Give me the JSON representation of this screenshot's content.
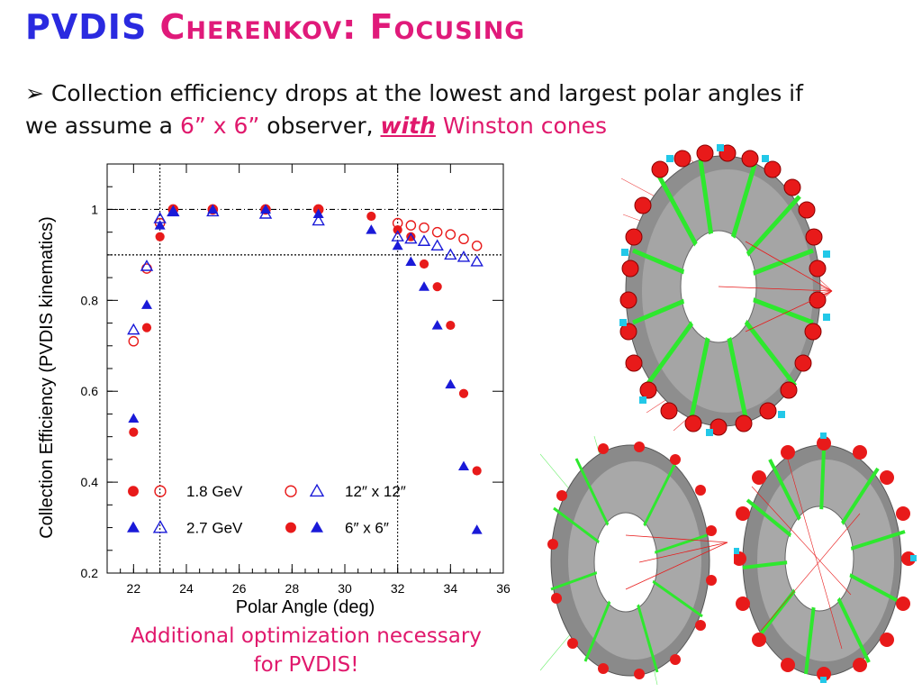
{
  "title": {
    "part1": "PVDIS",
    "part2": "Cherenkov: Focusing"
  },
  "bullet": {
    "marker": "➢",
    "text1": "Collection efficiency drops at the lowest and largest polar angles if we assume a ",
    "size": "6” x 6”",
    "text2": " observer, ",
    "with": "with",
    "text3": " Winston cones"
  },
  "caption": {
    "line1": "Additional optimization necessary",
    "line2": "for PVDIS!"
  },
  "colors": {
    "title_blue": "#2a2ae0",
    "accent_pink": "#e0186c",
    "red": "#e81a1a",
    "blue": "#1a1ad8",
    "cone_green": "#2ee82e",
    "ring_gray": "#8c8c8c"
  },
  "chart_data": {
    "type": "scatter",
    "xlabel": "Polar Angle (deg)",
    "ylabel": "Collection Efficiency (PVDIS kinematics)",
    "xlim": [
      21,
      36
    ],
    "ylim": [
      0.2,
      1.1
    ],
    "xticks": [
      22,
      24,
      26,
      28,
      30,
      32,
      34,
      36
    ],
    "yticks": [
      0.2,
      0.4,
      0.6,
      0.8,
      1
    ],
    "ytick_labels": [
      "0.2",
      "0.4",
      "0.6",
      "0.8",
      "1"
    ],
    "reference_lines": {
      "horizontal": [
        1.0,
        0.9
      ],
      "vertical": [
        23,
        32
      ]
    },
    "series": [
      {
        "name": "1.8 GeV 12″ x 12″",
        "marker": "open-circle",
        "color": "#e81a1a",
        "x": [
          22,
          22.5,
          23,
          23.5,
          25,
          27,
          29,
          32,
          32.5,
          33,
          33.5,
          34,
          34.5,
          35
        ],
        "y": [
          0.71,
          0.87,
          0.97,
          1.0,
          1.0,
          1.0,
          1.0,
          0.97,
          0.965,
          0.96,
          0.95,
          0.945,
          0.935,
          0.92
        ]
      },
      {
        "name": "1.8 GeV 6″ x 6″",
        "marker": "filled-circle",
        "color": "#e81a1a",
        "x": [
          22,
          22.5,
          23,
          23.5,
          25,
          27,
          29,
          31,
          32,
          32.5,
          33,
          33.5,
          34,
          34.5,
          35
        ],
        "y": [
          0.51,
          0.74,
          0.94,
          1.0,
          1.0,
          1.0,
          1.0,
          0.985,
          0.955,
          0.94,
          0.88,
          0.83,
          0.745,
          0.595,
          0.425
        ]
      },
      {
        "name": "2.7 GeV 12″ x 12″",
        "marker": "open-triangle",
        "color": "#1a1ad8",
        "x": [
          22,
          22.5,
          23,
          23.5,
          25,
          27,
          29,
          32,
          32.5,
          33,
          33.5,
          34,
          34.5,
          35
        ],
        "y": [
          0.735,
          0.875,
          0.98,
          0.995,
          0.995,
          0.99,
          0.975,
          0.94,
          0.935,
          0.93,
          0.92,
          0.9,
          0.895,
          0.885
        ]
      },
      {
        "name": "2.7 GeV 6″ x 6″",
        "marker": "filled-triangle",
        "color": "#1a1ad8",
        "x": [
          22,
          22.5,
          23,
          23.5,
          25,
          27,
          29,
          31,
          32,
          32.5,
          33,
          33.5,
          34,
          34.5,
          35
        ],
        "y": [
          0.54,
          0.79,
          0.965,
          0.995,
          1.0,
          1.0,
          0.99,
          0.955,
          0.92,
          0.885,
          0.83,
          0.745,
          0.615,
          0.435,
          0.295
        ]
      }
    ],
    "legend": {
      "rows": [
        {
          "label": "1.8 GeV",
          "symbols": [
            "filled-circle",
            "open-circle"
          ],
          "color": "#e81a1a"
        },
        {
          "label": "2.7 GeV",
          "symbols": [
            "filled-triangle",
            "open-triangle"
          ],
          "color": "#1a1ad8"
        }
      ],
      "size_rows": [
        {
          "label": "12″ x 12″",
          "symbols": [
            "open-circle",
            "open-triangle"
          ]
        },
        {
          "label": "6″ x 6″",
          "symbols": [
            "filled-circle",
            "filled-triangle"
          ]
        }
      ]
    }
  }
}
